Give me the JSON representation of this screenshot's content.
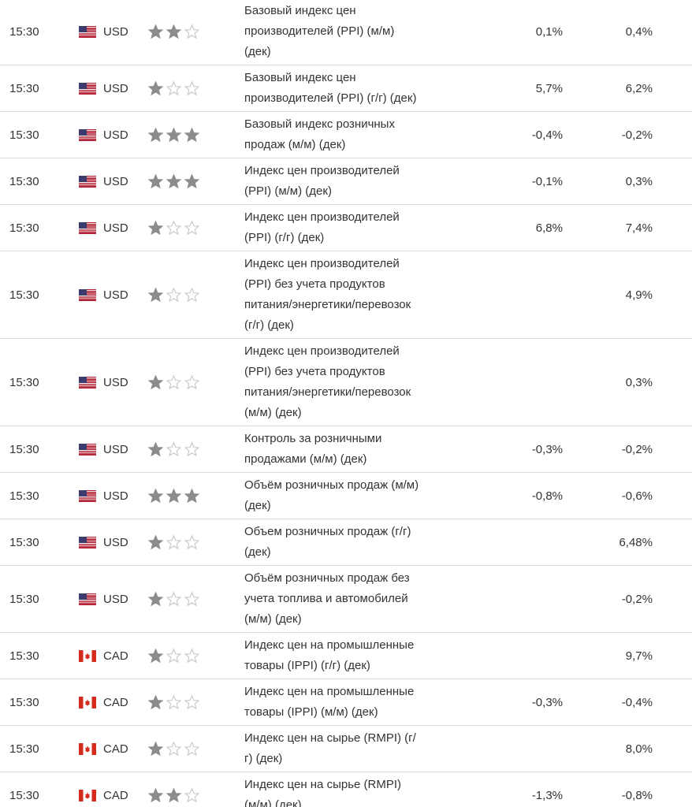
{
  "rows": [
    {
      "time": "15:30",
      "currency": "USD",
      "importance": 2,
      "event": [
        "Базовый индекс цен",
        "производителей (PPI) (м/м)",
        "(дек)"
      ],
      "forecast": "0,1%",
      "previous": "0,4%"
    },
    {
      "time": "15:30",
      "currency": "USD",
      "importance": 1,
      "event": [
        "Базовый индекс цен",
        "производителей (PPI) (г/г) (дек)"
      ],
      "forecast": "5,7%",
      "previous": "6,2%"
    },
    {
      "time": "15:30",
      "currency": "USD",
      "importance": 3,
      "event": [
        "Базовый индекс розничных",
        "продаж (м/м) (дек)"
      ],
      "forecast": "-0,4%",
      "previous": "-0,2%"
    },
    {
      "time": "15:30",
      "currency": "USD",
      "importance": 3,
      "event": [
        "Индекс цен производителей",
        "(PPI) (м/м) (дек)"
      ],
      "forecast": "-0,1%",
      "previous": "0,3%"
    },
    {
      "time": "15:30",
      "currency": "USD",
      "importance": 1,
      "event": [
        "Индекс цен производителей",
        "(PPI) (г/г) (дек)"
      ],
      "forecast": "6,8%",
      "previous": "7,4%"
    },
    {
      "time": "15:30",
      "currency": "USD",
      "importance": 1,
      "event": [
        "Индекс цен производителей",
        "(PPI) без учета продуктов",
        "питания/энергетики/перевозок",
        "(г/г) (дек)"
      ],
      "forecast": null,
      "previous": "4,9%"
    },
    {
      "time": "15:30",
      "currency": "USD",
      "importance": 1,
      "event": [
        "Индекс цен производителей",
        "(PPI) без учета продуктов",
        "питания/энергетики/перевозок",
        "(м/м) (дек)"
      ],
      "forecast": null,
      "previous": "0,3%"
    },
    {
      "time": "15:30",
      "currency": "USD",
      "importance": 1,
      "event": [
        "Контроль за розничными",
        "продажами (м/м) (дек)"
      ],
      "forecast": "-0,3%",
      "previous": "-0,2%"
    },
    {
      "time": "15:30",
      "currency": "USD",
      "importance": 3,
      "event": [
        "Объём розничных продаж (м/м)",
        "(дек)"
      ],
      "forecast": "-0,8%",
      "previous": "-0,6%"
    },
    {
      "time": "15:30",
      "currency": "USD",
      "importance": 1,
      "event": [
        "Объем розничных продаж (г/г)",
        "(дек)"
      ],
      "forecast": null,
      "previous": "6,48%"
    },
    {
      "time": "15:30",
      "currency": "USD",
      "importance": 1,
      "event": [
        "Объём розничных продаж без",
        "учета топлива и автомобилей",
        "(м/м) (дек)"
      ],
      "forecast": null,
      "previous": "-0,2%"
    },
    {
      "time": "15:30",
      "currency": "CAD",
      "importance": 1,
      "event": [
        "Индекс цен на промышленные",
        "товары (IPPI) (г/г) (дек)"
      ],
      "forecast": null,
      "previous": "9,7%"
    },
    {
      "time": "15:30",
      "currency": "CAD",
      "importance": 1,
      "event": [
        "Индекс цен на промышленные",
        "товары (IPPI) (м/м) (дек)"
      ],
      "forecast": "-0,3%",
      "previous": "-0,4%"
    },
    {
      "time": "15:30",
      "currency": "CAD",
      "importance": 1,
      "event": [
        "Индекс цен на сырье (RMPI) (г/",
        "г) (дек)"
      ],
      "forecast": null,
      "previous": "8,0%"
    },
    {
      "time": "15:30",
      "currency": "CAD",
      "importance": 2,
      "event": [
        "Индекс цен на сырье (RMPI)",
        "(м/м) (дек)"
      ],
      "forecast": "-1,3%",
      "previous": "-0,8%"
    }
  ]
}
